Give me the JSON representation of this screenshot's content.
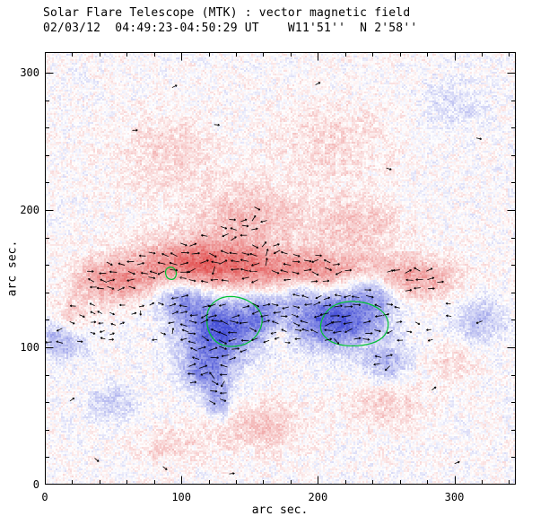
{
  "header": {
    "title": "Solar Flare Telescope (MTK) : vector magnetic field",
    "subtitle": "02/03/12  04:49:23-04:50:29 UT    W11'51''  N 2'58''"
  },
  "axes": {
    "xlabel": "arc sec.",
    "ylabel": "arc sec.",
    "x_ticks": [
      0,
      100,
      200,
      300
    ],
    "y_ticks": [
      0,
      100,
      200,
      300
    ],
    "xlim": [
      0,
      345
    ],
    "ylim": [
      0,
      315
    ],
    "minor_step": 20
  },
  "chart_data": {
    "type": "heatmap",
    "title": "Solar Flare Telescope (MTK) : vector magnetic field",
    "subtitle": "02/03/12  04:49:23-04:50:29 UT    W11'51''  N 2'58''",
    "xlabel": "arc sec.",
    "ylabel": "arc sec.",
    "xlim": [
      0,
      345
    ],
    "ylim": [
      0,
      315
    ],
    "legend": "red = positive polarity, blue = negative polarity, black segments = transverse field vectors, green = contours",
    "colors": {
      "positive": "#e14b4b",
      "negative": "#4656d7",
      "contour": "#00c232",
      "vector": "#000000",
      "axis": "#000000",
      "background": "#ffffff"
    },
    "polarity_blobs": [
      {
        "amp": 0.8,
        "x": 115,
        "y": 160,
        "sx": 35,
        "sy": 13
      },
      {
        "amp": 0.55,
        "x": 195,
        "y": 155,
        "sx": 35,
        "sy": 11
      },
      {
        "amp": 0.5,
        "x": 270,
        "y": 150,
        "sx": 22,
        "sy": 11
      },
      {
        "amp": 0.5,
        "x": 48,
        "y": 148,
        "sx": 20,
        "sy": 11
      },
      {
        "amp": 0.4,
        "x": 18,
        "y": 120,
        "sx": 10,
        "sy": 9
      },
      {
        "amp": 0.35,
        "x": 150,
        "y": 195,
        "sx": 30,
        "sy": 16
      },
      {
        "amp": 0.3,
        "x": 230,
        "y": 190,
        "sx": 22,
        "sy": 13
      },
      {
        "amp": 0.22,
        "x": 90,
        "y": 240,
        "sx": 26,
        "sy": 20
      },
      {
        "amp": 0.2,
        "x": 210,
        "y": 250,
        "sx": 30,
        "sy": 22
      },
      {
        "amp": 0.28,
        "x": 155,
        "y": 42,
        "sx": 26,
        "sy": 13
      },
      {
        "amp": 0.24,
        "x": 250,
        "y": 58,
        "sx": 20,
        "sy": 13
      },
      {
        "amp": 0.22,
        "x": 90,
        "y": 28,
        "sx": 16,
        "sy": 9
      },
      {
        "amp": 0.2,
        "x": 300,
        "y": 90,
        "sx": 14,
        "sy": 10
      },
      {
        "amp": 0.28,
        "x": 172,
        "y": 108,
        "sx": 6,
        "sy": 7
      },
      {
        "amp": -0.95,
        "x": 128,
        "y": 113,
        "sx": 20,
        "sy": 16
      },
      {
        "amp": -0.6,
        "x": 118,
        "y": 82,
        "sx": 12,
        "sy": 10
      },
      {
        "amp": -0.5,
        "x": 127,
        "y": 60,
        "sx": 7,
        "sy": 9
      },
      {
        "amp": -0.55,
        "x": 100,
        "y": 135,
        "sx": 12,
        "sy": 9
      },
      {
        "amp": -0.95,
        "x": 213,
        "y": 120,
        "sx": 24,
        "sy": 14
      },
      {
        "amp": -0.5,
        "x": 240,
        "y": 140,
        "sx": 13,
        "sy": 10
      },
      {
        "amp": -0.4,
        "x": 250,
        "y": 88,
        "sx": 12,
        "sy": 10
      },
      {
        "amp": -0.5,
        "x": 12,
        "y": 108,
        "sx": 12,
        "sy": 11
      },
      {
        "amp": -0.35,
        "x": 318,
        "y": 118,
        "sx": 14,
        "sy": 12
      },
      {
        "amp": -0.45,
        "x": 160,
        "y": 125,
        "sx": 10,
        "sy": 10
      },
      {
        "amp": -0.35,
        "x": 186,
        "y": 140,
        "sx": 9,
        "sy": 7
      },
      {
        "amp": -0.25,
        "x": 50,
        "y": 60,
        "sx": 14,
        "sy": 10
      },
      {
        "amp": -0.2,
        "x": 300,
        "y": 275,
        "sx": 16,
        "sy": 13
      }
    ],
    "contours": [
      {
        "points": [
          [
            89,
            150
          ],
          [
            88,
            157
          ],
          [
            93,
            159
          ],
          [
            97,
            155
          ],
          [
            95,
            149
          ]
        ]
      },
      {
        "points": [
          [
            118,
            122
          ],
          [
            121,
            131
          ],
          [
            130,
            137
          ],
          [
            142,
            137
          ],
          [
            153,
            132
          ],
          [
            160,
            123
          ],
          [
            158,
            112
          ],
          [
            150,
            103
          ],
          [
            138,
            100
          ],
          [
            127,
            102
          ],
          [
            120,
            110
          ]
        ]
      },
      {
        "points": [
          [
            201,
            113
          ],
          [
            204,
            124
          ],
          [
            213,
            132
          ],
          [
            227,
            134
          ],
          [
            241,
            131
          ],
          [
            251,
            123
          ],
          [
            252,
            113
          ],
          [
            246,
            105
          ],
          [
            233,
            101
          ],
          [
            218,
            101
          ],
          [
            207,
            105
          ]
        ]
      }
    ],
    "vector_field": {
      "x_min": 4,
      "x_max": 341,
      "y_min": 42,
      "y_max": 212,
      "x_step": 7.5,
      "y_step": 6.3,
      "threshold": 0.34,
      "band_y": [
        104,
        136
      ],
      "band_x": [
        2,
        300
      ]
    },
    "stray_vectors": [
      [
        66,
        258
      ],
      [
        126,
        262
      ],
      [
        252,
        230
      ],
      [
        38,
        18
      ],
      [
        88,
        12
      ],
      [
        137,
        8
      ],
      [
        302,
        16
      ],
      [
        20,
        62
      ],
      [
        318,
        252
      ],
      [
        95,
        290
      ],
      [
        200,
        292
      ],
      [
        285,
        70
      ]
    ],
    "noise": {
      "fine": 0.26,
      "coarse": 0.18,
      "seed": 7
    }
  }
}
